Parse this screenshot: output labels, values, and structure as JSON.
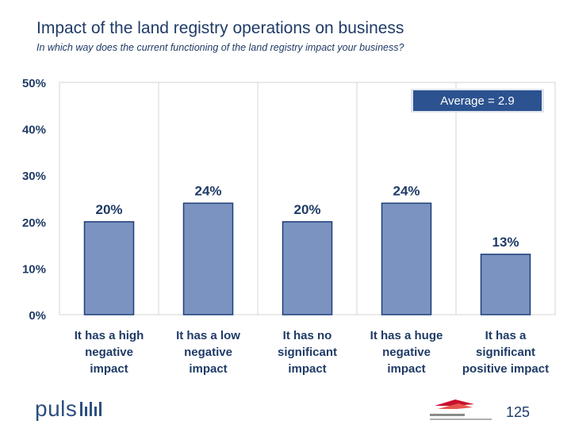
{
  "header": {
    "title": "Impact of the land registry operations on business",
    "subtitle": "In which way does the current functioning of the land registry impact your business?"
  },
  "chart_data": {
    "type": "bar",
    "categories": [
      [
        "It has a high",
        "negative",
        "impact"
      ],
      [
        "It has a low",
        "negative",
        "impact"
      ],
      [
        "It has no",
        "significant",
        "impact"
      ],
      [
        "It has a huge",
        "negative",
        "impact"
      ],
      [
        "It has a",
        "significant",
        "positive impact"
      ]
    ],
    "values": [
      20,
      24,
      20,
      24,
      13
    ],
    "value_labels": [
      "20%",
      "24%",
      "20%",
      "24%",
      "13%"
    ],
    "ylim": [
      0,
      50
    ],
    "yticks": [
      0,
      10,
      20,
      30,
      40,
      50
    ],
    "ytick_labels": [
      "0%",
      "10%",
      "20%",
      "30%",
      "40%",
      "50%"
    ],
    "grid": "vertical",
    "annotation": "Average = 2.9",
    "colors": {
      "bar": "#7b93c0",
      "bar_border": "#1f3f7a",
      "annotation_bg": "#2c5290",
      "annotation_text": "#ffffff",
      "text": "#1f3b66"
    }
  },
  "footer": {
    "logo_text": "puls",
    "partner_logo_icon": "bosnia-real-estate-logo-icon",
    "page_number": "125"
  }
}
